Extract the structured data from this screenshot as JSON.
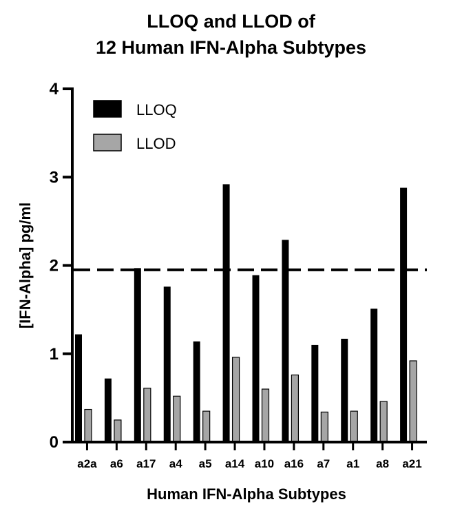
{
  "chart_data": {
    "type": "bar",
    "title_line1": "LLOQ and LLOD of",
    "title_line2": "12 Human IFN-Alpha Subtypes",
    "xlabel": "Human IFN-Alpha Subtypes",
    "ylabel": "[IFN-Alpha] pg/ml",
    "ylim": [
      0,
      4
    ],
    "yticks": [
      0,
      1,
      2,
      3,
      4
    ],
    "categories": [
      "a2a",
      "a6",
      "a17",
      "a4",
      "a5",
      "a14",
      "a10",
      "a16",
      "a7",
      "a1",
      "a8",
      "a21"
    ],
    "series": [
      {
        "name": "LLOQ",
        "color": "#000000",
        "values": [
          1.22,
          0.72,
          1.97,
          1.76,
          1.14,
          2.92,
          1.89,
          2.29,
          1.1,
          1.17,
          1.51,
          2.88
        ]
      },
      {
        "name": "LLOD",
        "color": "#a6a6a6",
        "values": [
          0.37,
          0.25,
          0.61,
          0.52,
          0.35,
          0.96,
          0.6,
          0.76,
          0.34,
          0.35,
          0.46,
          0.92
        ]
      }
    ],
    "reference_line": {
      "y": 1.95,
      "style": "dashed"
    },
    "legend_position": "top-left",
    "grid": false
  }
}
